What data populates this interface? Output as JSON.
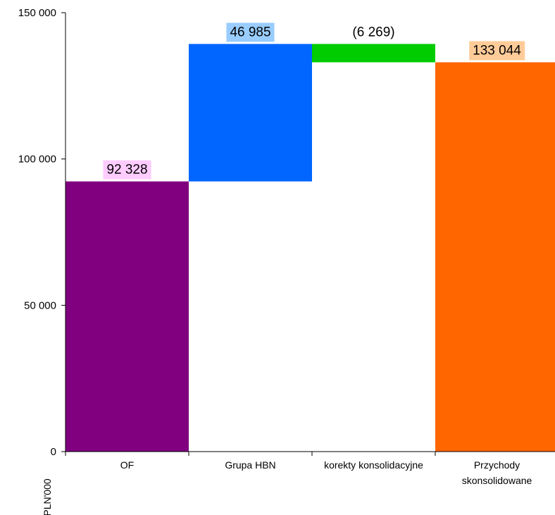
{
  "chart_data": {
    "type": "bar",
    "subtype": "waterfall",
    "ylabel": "PLN'000",
    "ylim": [
      0,
      150000
    ],
    "yticks": [
      0,
      50000,
      100000,
      150000
    ],
    "ytick_labels": [
      "0",
      "50 000",
      "100 000",
      "150 000"
    ],
    "grid": false,
    "legend": "none",
    "categories": [
      [
        "OF"
      ],
      [
        "Grupa HBN"
      ],
      [
        "korekty konsolidacyjne"
      ],
      [
        "Przychody",
        "skonsolidowane"
      ]
    ],
    "bars": [
      {
        "start": 0,
        "end": 92328,
        "value": 92328,
        "label": "92 328",
        "color": "#800080",
        "label_bg": "#ffccff"
      },
      {
        "start": 92328,
        "end": 139313,
        "value": 46985,
        "label": "46 985",
        "color": "#0066ff",
        "label_bg": "#99ccff"
      },
      {
        "start": 133044,
        "end": 139313,
        "value": -6269,
        "label": "(6 269)",
        "color": "#00cc00",
        "label_bg": ""
      },
      {
        "start": 0,
        "end": 133044,
        "value": 133044,
        "label": "133 044",
        "color": "#ff6600",
        "label_bg": "#ffcc99"
      }
    ]
  }
}
